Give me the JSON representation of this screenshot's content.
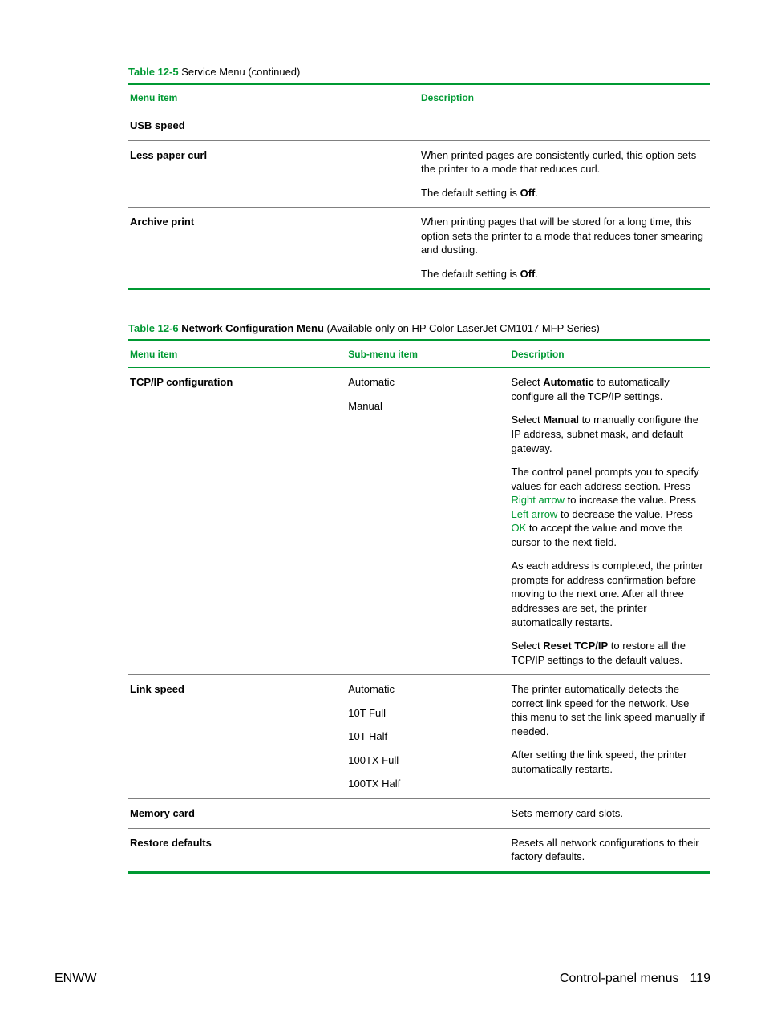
{
  "colors": {
    "accent": "#009933",
    "text": "#000000",
    "rowBorder": "#808080",
    "background": "#ffffff"
  },
  "table1": {
    "captionLabel": "Table 12-5",
    "captionRest": "  Service Menu (continued)",
    "headers": {
      "col1": "Menu item",
      "col2": "Description"
    },
    "rows": {
      "r1": {
        "item": "USB speed",
        "desc": ""
      },
      "r2": {
        "item": "Less paper curl",
        "desc_p1": "When printed pages are consistently curled, this option sets the printer to a mode that reduces curl.",
        "desc_p2a": "The default setting is ",
        "desc_p2b": "Off",
        "desc_p2c": "."
      },
      "r3": {
        "item": "Archive print",
        "desc_p1": "When printing pages that will be stored for a long time, this option sets the printer to a mode that reduces toner smearing and dusting.",
        "desc_p2a": "The default setting is ",
        "desc_p2b": "Off",
        "desc_p2c": "."
      }
    }
  },
  "table2": {
    "captionLabel": "Table 12-6",
    "captionBold": "  Network Configuration Menu",
    "captionRest": " (Available only on HP Color LaserJet CM1017 MFP Series)",
    "headers": {
      "col1": "Menu item",
      "col2": "Sub-menu item",
      "col3": "Description"
    },
    "rows": {
      "r1": {
        "item": "TCP/IP configuration",
        "sub1": "Automatic",
        "sub2": "Manual",
        "d1a": "Select ",
        "d1b": "Automatic",
        "d1c": " to automatically configure all the TCP/IP settings.",
        "d2a": "Select ",
        "d2b": "Manual",
        "d2c": " to manually configure the IP address, subnet mask, and default gateway.",
        "d3a": "The control panel prompts you to specify values for each address section. Press ",
        "d3b": "Right arrow",
        "d3c": " to increase the value. Press ",
        "d3d": "Left arrow",
        "d3e": " to decrease the value. Press ",
        "d3f": "OK",
        "d3g": " to accept the value and move the cursor to the next field.",
        "d4": "As each address is completed, the printer prompts for address confirmation before moving to the next one. After all three addresses are set, the printer automatically restarts.",
        "d5a": "Select ",
        "d5b": "Reset TCP/IP",
        "d5c": " to restore all the TCP/IP settings to the default values."
      },
      "r2": {
        "item": "Link speed",
        "sub1": "Automatic",
        "sub2": "10T Full",
        "sub3": "10T Half",
        "sub4": "100TX Full",
        "sub5": "100TX Half",
        "d1": "The printer automatically detects the correct link speed for the network. Use this menu to set the link speed manually if needed.",
        "d2": "After setting the link speed, the printer automatically restarts."
      },
      "r3": {
        "item": "Memory card",
        "d1": "Sets memory card slots."
      },
      "r4": {
        "item": "Restore defaults",
        "d1": "Resets all network configurations to their factory defaults."
      }
    }
  },
  "footer": {
    "left": "ENWW",
    "rightText": "Control-panel menus",
    "pageNum": "119"
  }
}
